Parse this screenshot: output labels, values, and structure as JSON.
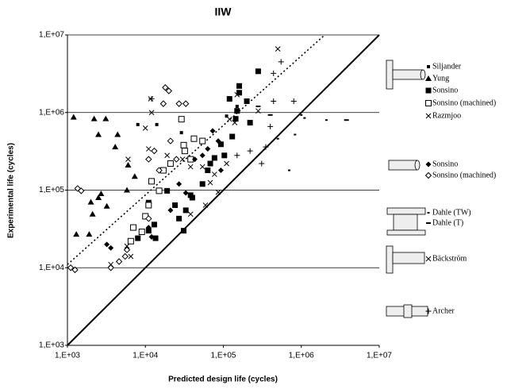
{
  "chart_data": {
    "type": "scatter",
    "title": "IIW",
    "x_label": "Predicted design life (cycles)",
    "y_label": "Experimental life (cycles)",
    "log_x": true,
    "log_y": true,
    "grid": "y",
    "xlim": [
      1000,
      10000000
    ],
    "ylim": [
      1000,
      10000000
    ],
    "xticks": [
      {
        "value": 1000,
        "label": "1,E+03"
      },
      {
        "value": 10000,
        "label": "1,E+04"
      },
      {
        "value": 100000,
        "label": "1,E+05"
      },
      {
        "value": 1000000,
        "label": "1,E+06"
      },
      {
        "value": 10000000,
        "label": "1,E+07"
      }
    ],
    "yticks": [
      {
        "value": 1000,
        "label": "1,E+03"
      },
      {
        "value": 10000,
        "label": "1,E+04"
      },
      {
        "value": 100000,
        "label": "1,E+05"
      },
      {
        "value": 1000000,
        "label": "1,E+06"
      },
      {
        "value": 10000000,
        "label": "1,E+07"
      }
    ],
    "reference_lines": [
      {
        "style": "solid",
        "x": [
          1000,
          10000000
        ],
        "y": [
          1000,
          10000000
        ]
      },
      {
        "style": "dotted",
        "x": [
          1000,
          2000000
        ],
        "y": [
          11000,
          10000000
        ]
      }
    ],
    "series": [
      {
        "name": "Siljander",
        "marker": "square-small",
        "color": "#000000",
        "x": [
          8000,
          14000,
          29000,
          110000,
          150000
        ],
        "y": [
          700000,
          700000,
          550000,
          900000,
          1200000
        ]
      },
      {
        "name": "Yung",
        "marker": "triangle",
        "color": "#000000",
        "x": [
          1200,
          2200,
          3100,
          2500,
          4100,
          6000,
          4400,
          2500,
          2700,
          1900,
          1300,
          2100,
          3200,
          5800,
          7300,
          2000
        ],
        "y": [
          870000,
          830000,
          830000,
          520000,
          360000,
          210000,
          520000,
          80000,
          90000,
          27000,
          27000,
          49000,
          62000,
          100000,
          150000,
          70000
        ]
      },
      {
        "name": "Sonsino",
        "marker": "square",
        "color": "#000000",
        "x": [
          11000,
          13000,
          13500,
          19000,
          24000,
          27000,
          31000,
          33000,
          38000,
          40000,
          54000,
          63000,
          68000,
          77000,
          103000,
          93000,
          130000,
          144000,
          150000,
          160000,
          160000,
          280000,
          120000,
          200000,
          220000,
          11000,
          8000
        ],
        "y": [
          30000,
          36000,
          24000,
          98000,
          64000,
          43000,
          30000,
          55000,
          86000,
          80000,
          120000,
          180000,
          220000,
          260000,
          280000,
          390000,
          490000,
          830000,
          1050000,
          1800000,
          2200000,
          3400000,
          1500000,
          1400000,
          740000,
          69000,
          24000
        ]
      },
      {
        "name": "Sonsino (machined)",
        "marker": "square-open",
        "color": "#000000",
        "x": [
          42000,
          54000,
          31000,
          32000,
          21000,
          17000,
          12000,
          11000,
          10000,
          7000,
          9000,
          6500,
          15000,
          38000,
          29000
        ],
        "y": [
          460000,
          430000,
          380000,
          320000,
          220000,
          180000,
          130000,
          64000,
          46000,
          33000,
          29000,
          22000,
          98000,
          250000,
          820000
        ]
      },
      {
        "name": "Razmjoo",
        "marker": "x",
        "color": "#000000",
        "x": [
          11700,
          12000,
          10000,
          11000,
          6000,
          19000,
          30000,
          38000,
          54000,
          68000,
          86000,
          120000,
          140000,
          5800,
          3600,
          6500,
          38000,
          59000
        ],
        "y": [
          1500000,
          1000000,
          630000,
          340000,
          250000,
          280000,
          250000,
          200000,
          200000,
          125000,
          94000,
          820000,
          740000,
          19000,
          11000,
          14000,
          49000,
          64000
        ]
      },
      {
        "name": "Sonsino",
        "marker": "diamond",
        "color": "#000000",
        "x": [
          21000,
          27000,
          33000,
          43000,
          54000,
          63000,
          73000,
          86000,
          93000,
          3200,
          3600,
          11000,
          12000
        ],
        "y": [
          55000,
          120000,
          92000,
          250000,
          280000,
          340000,
          580000,
          430000,
          180000,
          20000,
          18000,
          33000,
          25000
        ]
      },
      {
        "name": "Sonsino (machined)",
        "marker": "diamond-open",
        "color": "#000000",
        "x": [
          1100,
          1250,
          1350,
          1500,
          5500,
          5800,
          3600,
          15000,
          18000,
          20000,
          17000,
          27000,
          33000,
          11000,
          13000,
          21000,
          25000,
          11000,
          4600
        ],
        "y": [
          10000,
          9400,
          105000,
          98000,
          14000,
          17000,
          10000,
          180000,
          2100000,
          1900000,
          1300000,
          1300000,
          1300000,
          250000,
          320000,
          430000,
          250000,
          43000,
          12000
        ]
      },
      {
        "name": "Dahle (TW)",
        "marker": "dash-small",
        "color": "#000000",
        "x": [
          1000000,
          1100000,
          2100000,
          500000,
          830000,
          700000
        ],
        "y": [
          930000,
          850000,
          800000,
          460000,
          520000,
          180000
        ]
      },
      {
        "name": "Dahle (T)",
        "marker": "dash",
        "color": "#000000",
        "x": [
          3800000,
          400000,
          280000
        ],
        "y": [
          800000,
          930000,
          1200000
        ]
      },
      {
        "name": "Bäckström",
        "marker": "x",
        "color": "#000000",
        "x": [
          500000,
          150000,
          280000,
          77000,
          110000
        ],
        "y": [
          6600000,
          1700000,
          1050000,
          160000,
          220000
        ]
      },
      {
        "name": "Archer",
        "marker": "plus",
        "color": "#000000",
        "x": [
          12000,
          440000,
          550000,
          800000,
          400000,
          350000,
          220000,
          310000,
          440000,
          150000
        ],
        "y": [
          1500000,
          3200000,
          4500000,
          1400000,
          660000,
          360000,
          320000,
          220000,
          1400000,
          280000
        ]
      }
    ]
  }
}
